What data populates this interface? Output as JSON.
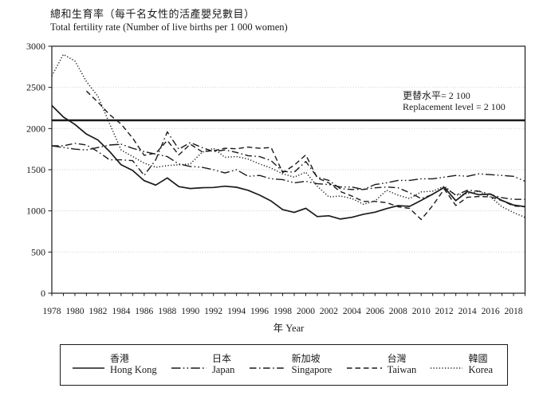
{
  "colors": {
    "line": "#1a1a1a",
    "grid": "#c6c6c6",
    "background": "#ffffff"
  },
  "chart_data": {
    "type": "line",
    "title_zh": "總和生育率（每千名女性的活產嬰兒數目）",
    "title_en": "Total fertility rate (Number of live births per 1 000 women)",
    "xlabel": "年 Year",
    "x_range": [
      1978,
      2019
    ],
    "x_tick_labels": [
      1978,
      1980,
      1982,
      1984,
      1986,
      1988,
      1990,
      1992,
      1994,
      1996,
      1998,
      2000,
      2002,
      2004,
      2006,
      2008,
      2010,
      2012,
      2014,
      2016,
      2018
    ],
    "ylim": [
      0,
      3000
    ],
    "y_ticks": [
      0,
      500,
      1000,
      1500,
      2000,
      2500,
      3000
    ],
    "grid": true,
    "legend_position": "bottom",
    "replacement_level": 2100,
    "annotation": {
      "line1": "更替水平= 2 100",
      "line2": "Replacement level = 2 100"
    },
    "series": [
      {
        "name_zh": "香港",
        "name_en": "Hong Kong",
        "style": "solid",
        "start_year": 1978,
        "values": [
          2280,
          2140,
          2050,
          1933,
          1860,
          1722,
          1560,
          1491,
          1367,
          1313,
          1400,
          1295,
          1272,
          1281,
          1284,
          1300,
          1287,
          1250,
          1191,
          1120,
          1015,
          981,
          1032,
          931,
          941,
          901,
          922,
          959,
          984,
          1028,
          1064,
          1055,
          1127,
          1204,
          1285,
          1125,
          1235,
          1196,
          1205,
          1126,
          1071,
          1051
        ]
      },
      {
        "name_zh": "日本",
        "name_en": "Japan",
        "style": "dash-dot-dot",
        "start_year": 1978,
        "values": [
          1790,
          1770,
          1750,
          1740,
          1770,
          1800,
          1810,
          1760,
          1720,
          1690,
          1660,
          1570,
          1540,
          1530,
          1500,
          1460,
          1500,
          1420,
          1430,
          1390,
          1380,
          1340,
          1360,
          1330,
          1320,
          1290,
          1290,
          1260,
          1320,
          1340,
          1370,
          1370,
          1390,
          1390,
          1410,
          1430,
          1420,
          1450,
          1440,
          1430,
          1420,
          1360
        ]
      },
      {
        "name_zh": "新加坡",
        "name_en": "Singapore",
        "style": "dash-dot",
        "start_year": 1978,
        "values": [
          1790,
          1790,
          1820,
          1800,
          1720,
          1620,
          1620,
          1610,
          1430,
          1620,
          1960,
          1750,
          1830,
          1770,
          1720,
          1740,
          1710,
          1670,
          1660,
          1610,
          1480,
          1470,
          1600,
          1410,
          1370,
          1270,
          1260,
          1260,
          1280,
          1290,
          1280,
          1220,
          1150,
          1200,
          1290,
          1190,
          1250,
          1240,
          1200,
          1160,
          1140,
          1140
        ]
      },
      {
        "name_zh": "台灣",
        "name_en": "Taiwan",
        "style": "dashed",
        "start_year": 1981,
        "values": [
          2455,
          2320,
          2170,
          2055,
          1885,
          1675,
          1700,
          1855,
          1680,
          1810,
          1720,
          1730,
          1760,
          1755,
          1775,
          1760,
          1770,
          1465,
          1555,
          1680,
          1400,
          1340,
          1235,
          1180,
          1115,
          1115,
          1100,
          1050,
          1030,
          895,
          1065,
          1265,
          1065,
          1165,
          1175,
          1170,
          1125,
          1060,
          1050
        ]
      },
      {
        "name_zh": "韓國",
        "name_en": "Korea",
        "style": "dotted",
        "start_year": 1978,
        "values": [
          2640,
          2900,
          2820,
          2570,
          2390,
          2060,
          1740,
          1660,
          1580,
          1530,
          1550,
          1560,
          1570,
          1710,
          1760,
          1650,
          1660,
          1630,
          1570,
          1520,
          1450,
          1410,
          1470,
          1300,
          1170,
          1180,
          1150,
          1080,
          1120,
          1250,
          1190,
          1150,
          1230,
          1240,
          1300,
          1190,
          1210,
          1240,
          1170,
          1050,
          980,
          920
        ]
      }
    ]
  }
}
